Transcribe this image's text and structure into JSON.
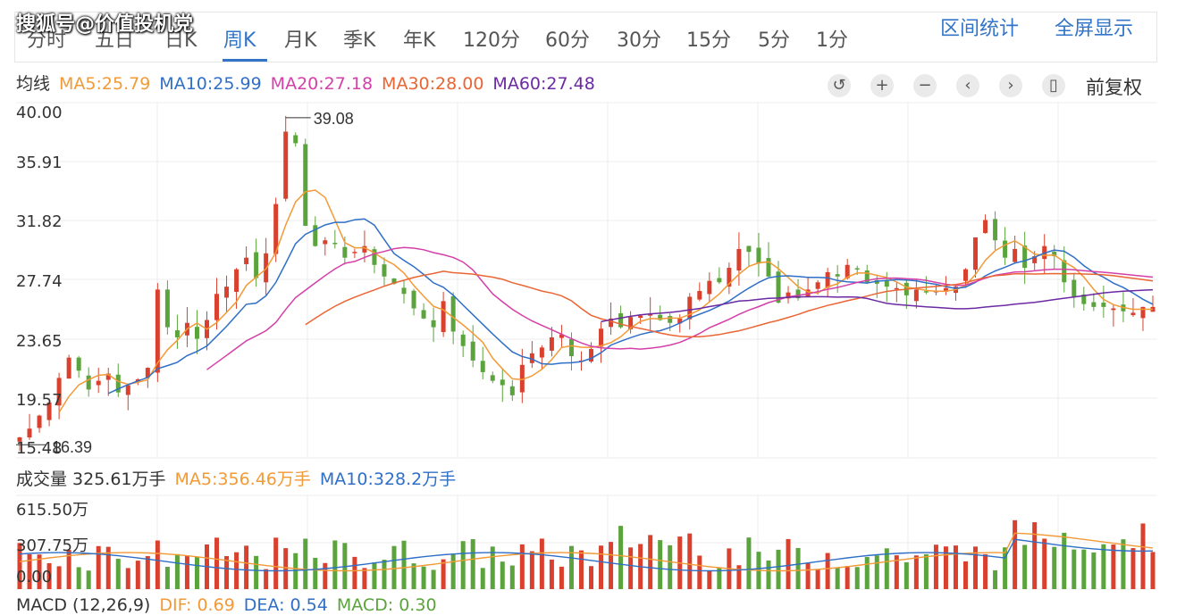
{
  "watermark": "搜狐号@价值投机党",
  "tabs": [
    {
      "label": "分时",
      "active": false
    },
    {
      "label": "五日",
      "active": false
    },
    {
      "label": "日K",
      "active": false
    },
    {
      "label": "周K",
      "active": true
    },
    {
      "label": "月K",
      "active": false
    },
    {
      "label": "季K",
      "active": false
    },
    {
      "label": "年K",
      "active": false
    },
    {
      "label": "120分",
      "active": false
    },
    {
      "label": "60分",
      "active": false
    },
    {
      "label": "30分",
      "active": false
    },
    {
      "label": "15分",
      "active": false
    },
    {
      "label": "5分",
      "active": false
    },
    {
      "label": "1分",
      "active": false
    }
  ],
  "right_links": {
    "stats": "区间统计",
    "fullscreen": "全屏显示"
  },
  "ma_legend": {
    "title": "均线",
    "ma5": "MA5:25.79",
    "ma10": "MA10:25.99",
    "ma20": "MA20:27.18",
    "ma30": "MA30:28.00",
    "ma60": "MA60:27.48"
  },
  "toolbar": {
    "reset": "↺",
    "zoom_in": "+",
    "zoom_out": "−",
    "prev": "‹",
    "next": "›",
    "candle": "▯",
    "fq_label": "前复权"
  },
  "colors": {
    "up": "#d9412e",
    "down": "#5ba33c",
    "ma5": "#f29a36",
    "ma10": "#2f6fc7",
    "ma20": "#d43fa8",
    "ma30": "#ea6534",
    "ma60": "#6b2aa3",
    "grid": "#ececec"
  },
  "price_axis": {
    "ticks": [
      "40.00",
      "35.91",
      "31.82",
      "27.74",
      "23.65",
      "19.57",
      "15.48"
    ],
    "high_label": "39.08",
    "low_label": "16.39"
  },
  "volume_legend": {
    "vol": "成交量 325.61万手",
    "ma5": "MA5:356.46万手",
    "ma10": "MA10:328.2万手"
  },
  "volume_axis": {
    "ticks": [
      "615.50万",
      "307.75万",
      "0.00"
    ]
  },
  "macd_legend": {
    "label": "MACD (12,26,9)",
    "dif": "DIF: 0.69",
    "dea": "DEA: 0.54",
    "macd": "MACD: 0.30"
  },
  "chart_data": {
    "type": "candlestick",
    "weekly_close": [
      16.9,
      17.5,
      18.4,
      19.3,
      21.0,
      22.4,
      21.5,
      20.2,
      20.8,
      21.3,
      20.0,
      20.5,
      20.9,
      21.7,
      27.1,
      24.5,
      23.8,
      24.8,
      23.7,
      25.0,
      26.8,
      27.3,
      28.5,
      29.3,
      27.9,
      29.6,
      33.0,
      38.0,
      37.2,
      31.5,
      30.1,
      30.5,
      30.3,
      29.3,
      29.7,
      30.1,
      28.8,
      28.0,
      27.5,
      26.8,
      25.8,
      25.1,
      24.5,
      26.3,
      24.2,
      23.2,
      22.2,
      21.4,
      20.8,
      20.5,
      19.8,
      21.9,
      22.7,
      23.1,
      23.8,
      24.0,
      22.5,
      22.2,
      23.0,
      24.4,
      25.1,
      24.5,
      25.2,
      25.3,
      25.4,
      25.0,
      24.8,
      25.1,
      26.6,
      27.0,
      27.7,
      27.6,
      28.6,
      29.9,
      29.7,
      28.9,
      28.0,
      26.2,
      26.9,
      26.5,
      27.1,
      27.6,
      28.3,
      28.0,
      28.8,
      28.5,
      27.6,
      27.5,
      27.3,
      27.2,
      26.7,
      27.1,
      26.9,
      27.0,
      27.2,
      27.3,
      28.5,
      30.7,
      31.9,
      30.5,
      29.3,
      29.9,
      28.6,
      29.4,
      30.1,
      29.4,
      27.6,
      26.6,
      26.1,
      25.9,
      25.9,
      25.8,
      25.6,
      25.5,
      25.9,
      25.9
    ],
    "price_ylim": [
      15.48,
      40.0
    ],
    "period_high": 39.08,
    "period_low": 16.39,
    "volume_ylim": [
      0,
      615.5
    ],
    "ma_values": {
      "MA5": 25.79,
      "MA10": 25.99,
      "MA20": 27.18,
      "MA30": 28.0,
      "MA60": 27.48
    }
  }
}
